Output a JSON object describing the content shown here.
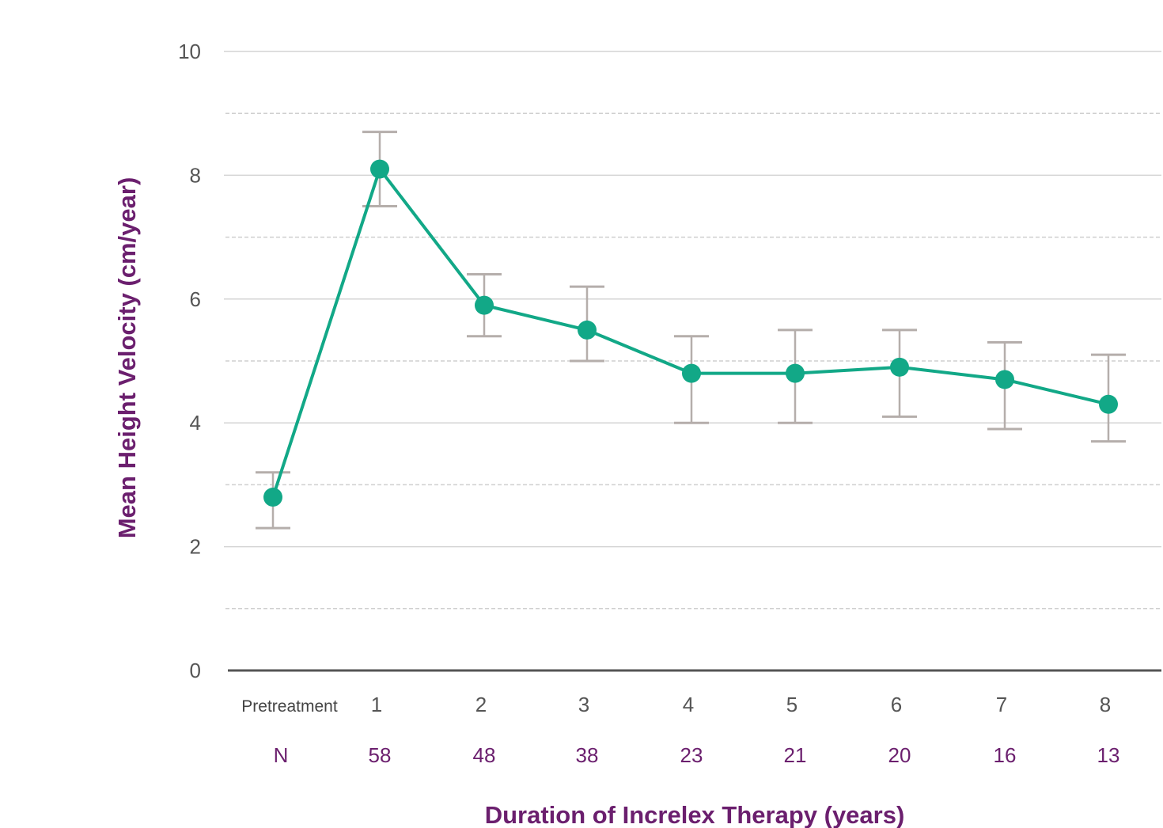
{
  "chart_data": {
    "type": "line",
    "title": "",
    "xlabel": "Duration of Increlex Therapy (years)",
    "ylabel": "Mean Height Velocity (cm/year)",
    "ylim": [
      0,
      10
    ],
    "yticks": [
      0,
      2,
      4,
      6,
      8,
      10
    ],
    "grid": "horizontal",
    "categories": [
      "Pretreatment",
      "1",
      "2",
      "3",
      "4",
      "5",
      "6",
      "7",
      "8"
    ],
    "series": [
      {
        "values": [
          2.8,
          8.1,
          5.9,
          5.5,
          4.8,
          4.8,
          4.9,
          4.7,
          4.3
        ],
        "error_low": [
          2.3,
          7.5,
          5.4,
          5.0,
          4.0,
          4.0,
          4.1,
          3.9,
          3.7
        ],
        "error_high": [
          3.2,
          8.7,
          6.4,
          6.2,
          5.4,
          5.5,
          5.5,
          5.3,
          5.1
        ]
      }
    ],
    "n_row": {
      "label": "N",
      "values": [
        "",
        "58",
        "48",
        "38",
        "23",
        "21",
        "20",
        "16",
        "13"
      ]
    },
    "colors": {
      "line": "#12a887",
      "marker": "#12a887",
      "errorbar": "#b5aeab",
      "axis": "#555555",
      "grid": "#cccccc",
      "label_accent": "#6b1f6e"
    }
  }
}
